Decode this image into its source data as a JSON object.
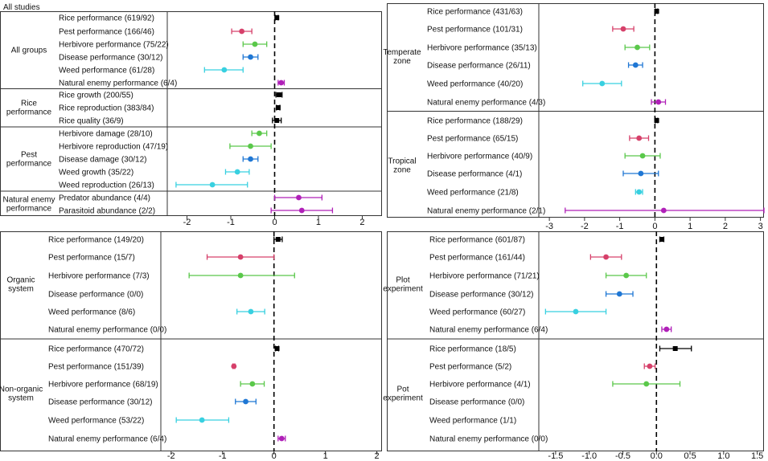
{
  "title": "All studies",
  "colors": {
    "rice": "#000000",
    "pest": "#d6406a",
    "herbivore": "#5ac84a",
    "disease": "#1f77d4",
    "weed": "#38d0e0",
    "natural_enemy": "#b020b8"
  },
  "chart_data": [
    {
      "type": "forest",
      "xlim": [
        -2.45,
        2.45
      ],
      "ticks": [
        -2,
        -1,
        0,
        1,
        2
      ],
      "tick_labels": [
        "-2",
        "-1",
        "0",
        "1",
        "2"
      ],
      "reference_line": 0,
      "groups": [
        {
          "label": "All groups",
          "rows": [
            {
              "label": "Rice performance (619/92)",
              "color": "rice",
              "est": 0.05,
              "lo": 0.02,
              "hi": 0.08
            },
            {
              "label": "Pest performance (166/46)",
              "color": "pest",
              "est": -0.75,
              "lo": -0.98,
              "hi": -0.52
            },
            {
              "label": "Herbivore performance (75/22)",
              "color": "herbivore",
              "est": -0.45,
              "lo": -0.72,
              "hi": -0.18
            },
            {
              "label": "Disease performance (30/12)",
              "color": "disease",
              "est": -0.55,
              "lo": -0.72,
              "hi": -0.38
            },
            {
              "label": "Weed performance (61/28)",
              "color": "weed",
              "est": -1.15,
              "lo": -1.6,
              "hi": -0.72
            },
            {
              "label": "Natural enemy performance (6/4)",
              "color": "natural_enemy",
              "est": 0.15,
              "lo": 0.08,
              "hi": 0.22
            }
          ]
        },
        {
          "label": "Rice performance",
          "rows": [
            {
              "label": "Rice growth (200/55)",
              "color": "rice",
              "est": 0.1,
              "lo": 0.03,
              "hi": 0.17
            },
            {
              "label": "Rice reproduction (383/84)",
              "color": "rice",
              "est": 0.08,
              "lo": 0.04,
              "hi": 0.12
            },
            {
              "label": "Rice quality (36/9)",
              "color": "rice",
              "est": 0.05,
              "lo": -0.05,
              "hi": 0.15
            }
          ]
        },
        {
          "label": "Pest performance",
          "rows": [
            {
              "label": "Herbivore damage (28/10)",
              "color": "herbivore",
              "est": -0.35,
              "lo": -0.52,
              "hi": -0.18
            },
            {
              "label": "Herbivore reproduction (47/19)",
              "color": "herbivore",
              "est": -0.55,
              "lo": -1.02,
              "hi": -0.08
            },
            {
              "label": "Disease damage (30/12)",
              "color": "disease",
              "est": -0.55,
              "lo": -0.72,
              "hi": -0.38
            },
            {
              "label": "Weed growth (35/22)",
              "color": "weed",
              "est": -0.85,
              "lo": -1.12,
              "hi": -0.58
            },
            {
              "label": "Weed reproduction (26/13)",
              "color": "weed",
              "est": -1.42,
              "lo": -2.25,
              "hi": -0.62
            }
          ]
        },
        {
          "label": "Natural enemy performance",
          "rows": [
            {
              "label": "Predator abundance (4/4)",
              "color": "natural_enemy",
              "est": 0.55,
              "lo": 0.0,
              "hi": 1.08
            },
            {
              "label": "Parasitoid abundance (2/2)",
              "color": "natural_enemy",
              "est": 0.62,
              "lo": -0.08,
              "hi": 1.32
            }
          ]
        }
      ]
    },
    {
      "type": "forest",
      "xlim": [
        -3.3,
        3.1
      ],
      "ticks": [
        -3,
        -2,
        -1,
        0,
        1,
        2,
        3
      ],
      "tick_labels": [
        "-3",
        "-2",
        "-1",
        "0",
        "1",
        "2",
        "3"
      ],
      "reference_line": 0,
      "groups": [
        {
          "label": "Temperate zone",
          "rows": [
            {
              "label": "Rice performance (431/63)",
              "color": "rice",
              "est": 0.05,
              "lo": 0.02,
              "hi": 0.08
            },
            {
              "label": "Pest performance (101/31)",
              "color": "pest",
              "est": -0.9,
              "lo": -1.2,
              "hi": -0.6
            },
            {
              "label": "Herbivore performance (35/13)",
              "color": "herbivore",
              "est": -0.5,
              "lo": -0.85,
              "hi": -0.15
            },
            {
              "label": "Disease performance (26/11)",
              "color": "disease",
              "est": -0.55,
              "lo": -0.75,
              "hi": -0.35
            },
            {
              "label": "Weed performance (40/20)",
              "color": "weed",
              "est": -1.5,
              "lo": -2.05,
              "hi": -0.95
            },
            {
              "label": "Natural enemy performance (4/3)",
              "color": "natural_enemy",
              "est": 0.1,
              "lo": -0.1,
              "hi": 0.3
            }
          ]
        },
        {
          "label": "Tropical zone",
          "rows": [
            {
              "label": "Rice performance (188/29)",
              "color": "rice",
              "est": 0.05,
              "lo": 0.02,
              "hi": 0.08
            },
            {
              "label": "Pest performance (65/15)",
              "color": "pest",
              "est": -0.45,
              "lo": -0.72,
              "hi": -0.18
            },
            {
              "label": "Herbivore performance (40/9)",
              "color": "herbivore",
              "est": -0.35,
              "lo": -0.85,
              "hi": 0.15
            },
            {
              "label": "Disease performance (4/1)",
              "color": "disease",
              "est": -0.4,
              "lo": -0.9,
              "hi": 0.1
            },
            {
              "label": "Weed performance (21/8)",
              "color": "weed",
              "est": -0.45,
              "lo": -0.55,
              "hi": -0.35
            },
            {
              "label": "Natural enemy performance (2/1)",
              "color": "natural_enemy",
              "est": 0.25,
              "lo": -2.55,
              "hi": 3.1
            }
          ]
        }
      ]
    },
    {
      "type": "forest",
      "xlim": [
        -2.2,
        2.1
      ],
      "ticks": [
        -2,
        -1,
        0,
        1,
        2
      ],
      "tick_labels": [
        "-2",
        "-1",
        "0",
        "1",
        "2"
      ],
      "reference_line": 0,
      "groups": [
        {
          "label": "Organic system",
          "rows": [
            {
              "label": "Rice performance (149/20)",
              "color": "rice",
              "est": 0.08,
              "lo": 0.0,
              "hi": 0.16
            },
            {
              "label": "Pest performance (15/7)",
              "color": "pest",
              "est": -0.65,
              "lo": -1.3,
              "hi": 0.0
            },
            {
              "label": "Herbivore performance (7/3)",
              "color": "herbivore",
              "est": -0.65,
              "lo": -1.65,
              "hi": 0.4
            },
            {
              "label": "Disease performance (0/0)",
              "color": "disease",
              "est": null,
              "lo": null,
              "hi": null
            },
            {
              "label": "Weed performance (8/6)",
              "color": "weed",
              "est": -0.45,
              "lo": -0.72,
              "hi": -0.18
            },
            {
              "label": "Natural enemy performance (0/0)",
              "color": "natural_enemy",
              "est": null,
              "lo": null,
              "hi": null
            }
          ]
        },
        {
          "label": "Non-organic system",
          "rows": [
            {
              "label": "Rice performance (470/72)",
              "color": "rice",
              "est": 0.06,
              "lo": 0.03,
              "hi": 0.09
            },
            {
              "label": "Pest performance (151/39)",
              "color": "pest",
              "est": -0.78,
              "lo": -0.8,
              "hi": -0.76
            },
            {
              "label": "Herbivore performance (68/19)",
              "color": "herbivore",
              "est": -0.42,
              "lo": -0.65,
              "hi": -0.19
            },
            {
              "label": "Disease performance (30/12)",
              "color": "disease",
              "est": -0.55,
              "lo": -0.75,
              "hi": -0.35
            },
            {
              "label": "Weed performance (53/22)",
              "color": "weed",
              "est": -1.4,
              "lo": -1.9,
              "hi": -0.88
            },
            {
              "label": "Natural enemy performance (6/4)",
              "color": "natural_enemy",
              "est": 0.15,
              "lo": 0.08,
              "hi": 0.22
            }
          ]
        }
      ]
    },
    {
      "type": "forest",
      "xlim": [
        -1.75,
        1.6
      ],
      "ticks": [
        -1.5,
        -1.0,
        -0.5,
        0.0,
        0.5,
        1.0,
        1.5
      ],
      "tick_labels": [
        "-1.5",
        "-1.0",
        "-0.5",
        "0.0",
        "0.5",
        "1.0",
        "1.5"
      ],
      "reference_line": 0,
      "groups": [
        {
          "label": "Plot experiment",
          "rows": [
            {
              "label": "Rice performance (601/87)",
              "color": "rice",
              "est": 0.08,
              "lo": 0.05,
              "hi": 0.11
            },
            {
              "label": "Pest performance (161/44)",
              "color": "pest",
              "est": -0.75,
              "lo": -0.98,
              "hi": -0.52
            },
            {
              "label": "Herbivore performance (71/21)",
              "color": "herbivore",
              "est": -0.45,
              "lo": -0.75,
              "hi": -0.15
            },
            {
              "label": "Disease performance (30/12)",
              "color": "disease",
              "est": -0.55,
              "lo": -0.75,
              "hi": -0.35
            },
            {
              "label": "Weed performance (60/27)",
              "color": "weed",
              "est": -1.2,
              "lo": -1.65,
              "hi": -0.75
            },
            {
              "label": "Natural enemy performance (6/4)",
              "color": "natural_enemy",
              "est": 0.15,
              "lo": 0.08,
              "hi": 0.22
            }
          ]
        },
        {
          "label": "Pot experiment",
          "rows": [
            {
              "label": "Rice performance (18/5)",
              "color": "rice",
              "est": 0.28,
              "lo": 0.05,
              "hi": 0.52
            },
            {
              "label": "Pest performance (5/2)",
              "color": "pest",
              "est": -0.1,
              "lo": -0.18,
              "hi": -0.02
            },
            {
              "label": "Herbivore performance (4/1)",
              "color": "herbivore",
              "est": -0.15,
              "lo": -0.65,
              "hi": 0.35
            },
            {
              "label": "Disease performance (0/0)",
              "color": "disease",
              "est": null,
              "lo": null,
              "hi": null
            },
            {
              "label": "Weed performance (1/1)",
              "color": "weed",
              "est": null,
              "lo": null,
              "hi": null
            },
            {
              "label": "Natural enemy performance (0/0)",
              "color": "natural_enemy",
              "est": null,
              "lo": null,
              "hi": null
            }
          ]
        }
      ]
    }
  ]
}
